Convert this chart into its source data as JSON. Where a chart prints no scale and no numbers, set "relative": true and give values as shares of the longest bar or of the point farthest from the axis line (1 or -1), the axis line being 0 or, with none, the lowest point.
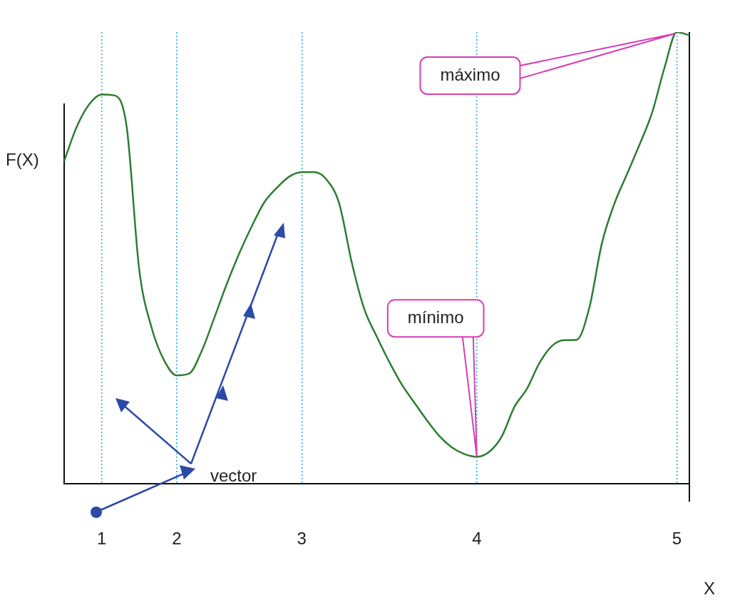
{
  "chart_data": {
    "type": "line",
    "relative": true,
    "xlabel": "X",
    "ylabel": "F(X)",
    "categories": [
      null,
      null,
      null,
      "1",
      null,
      null,
      null,
      null,
      null,
      "2",
      null,
      null,
      null,
      null,
      null,
      null,
      null,
      null,
      null,
      "3",
      null,
      null,
      null,
      null,
      null,
      null,
      null,
      null,
      null,
      null,
      null,
      null,
      null,
      "4",
      null,
      null,
      null,
      null,
      null,
      null,
      null,
      null,
      null,
      null,
      null,
      null,
      null,
      null,
      null,
      "5",
      null
    ],
    "series": [
      {
        "color": "#2e7d32",
        "values": [
          0.715,
          0.79,
          0.84,
          0.862,
          0.86,
          0.79,
          0.475,
          0.345,
          0.273,
          0.24,
          0.244,
          0.294,
          0.367,
          0.442,
          0.51,
          0.57,
          0.623,
          0.655,
          0.68,
          0.69,
          0.69,
          0.673,
          0.62,
          0.49,
          0.387,
          0.326,
          0.27,
          0.22,
          0.18,
          0.141,
          0.106,
          0.081,
          0.066,
          0.06,
          0.071,
          0.105,
          0.17,
          0.21,
          0.267,
          0.305,
          0.318,
          0.319,
          0.39,
          0.532,
          0.62,
          0.685,
          0.75,
          0.82,
          0.92,
          1,
          0.993
        ]
      }
    ],
    "annotations": [
      "máximo",
      "mínimo",
      "vector"
    ],
    "grid": "x",
    "legend": false,
    "marker": "none",
    "line_style": "solid"
  }
}
